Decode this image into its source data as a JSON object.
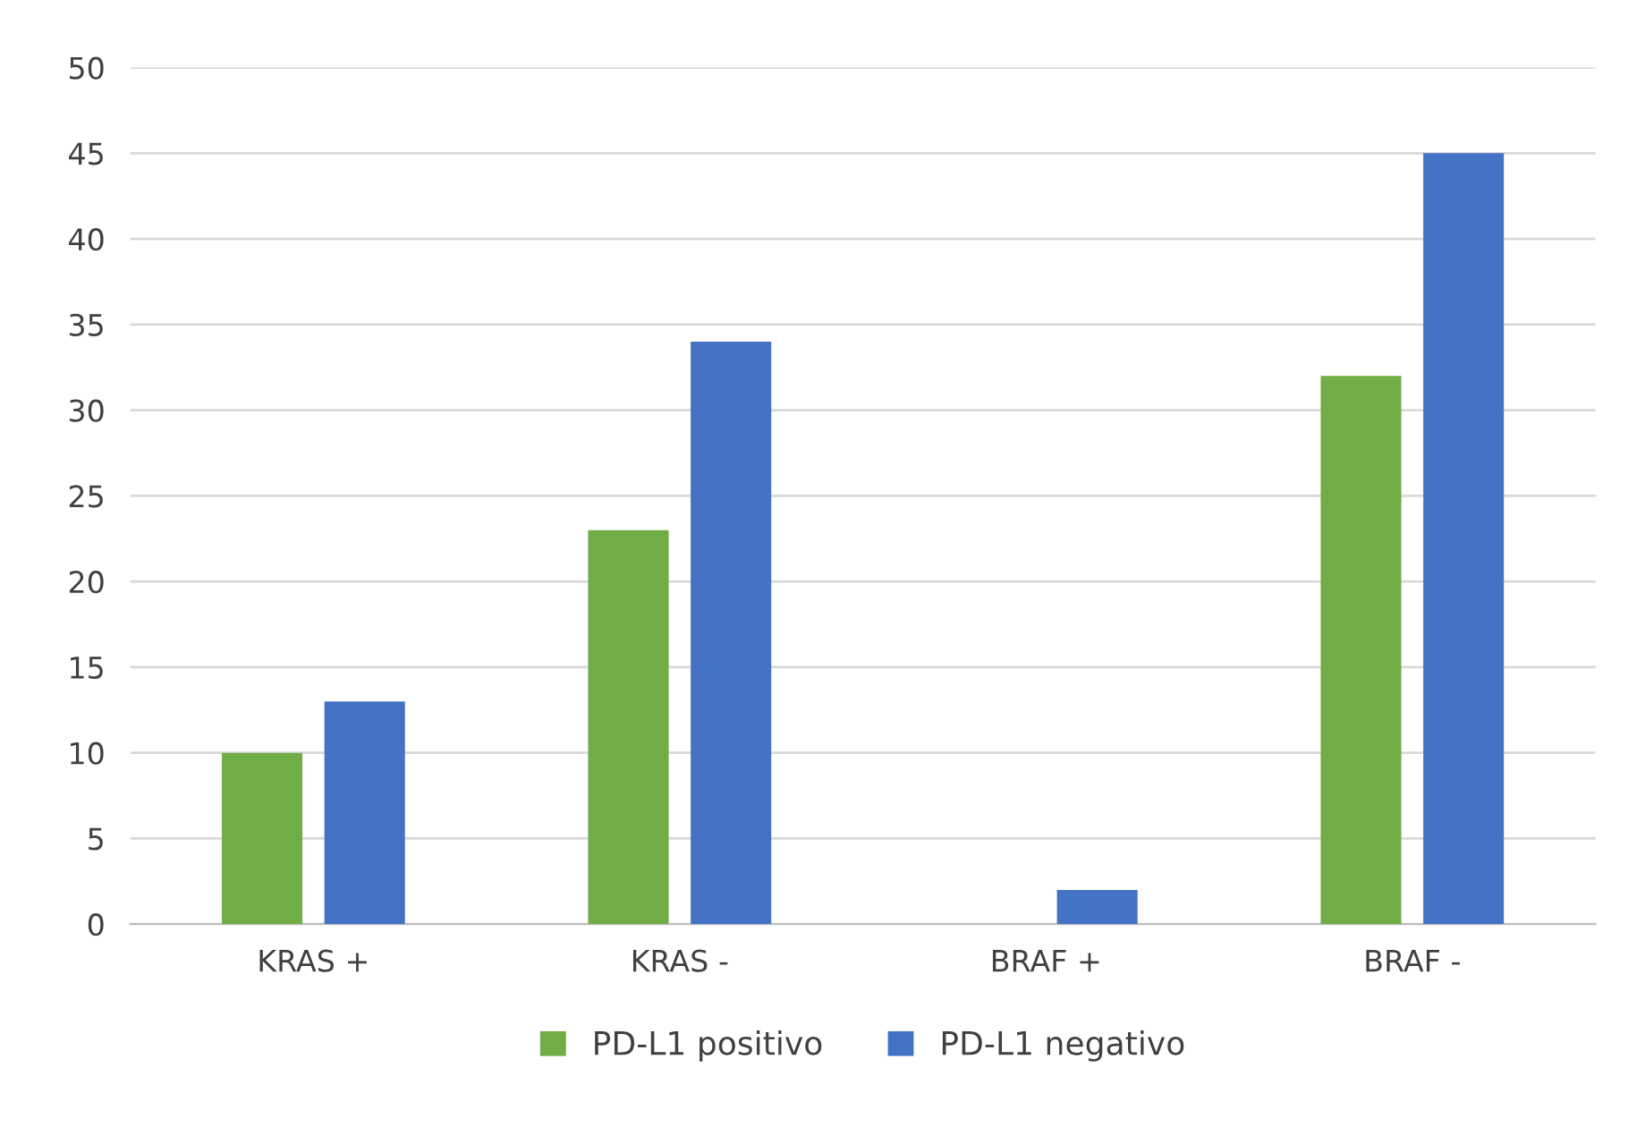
{
  "chart_data": {
    "type": "bar",
    "categories": [
      "KRAS +",
      "KRAS -",
      "BRAF +",
      "BRAF -"
    ],
    "series": [
      {
        "name": "PD-L1 positivo",
        "color": "#70ad47",
        "values": [
          10,
          23,
          0,
          32
        ]
      },
      {
        "name": "PD-L1 negativo",
        "color": "#4472c4",
        "values": [
          13,
          34,
          2,
          45
        ]
      }
    ],
    "ylim": [
      0,
      50
    ],
    "yticks": [
      0,
      5,
      10,
      15,
      20,
      25,
      30,
      35,
      40,
      45,
      50
    ],
    "grid": "y",
    "legend": "bottom"
  }
}
